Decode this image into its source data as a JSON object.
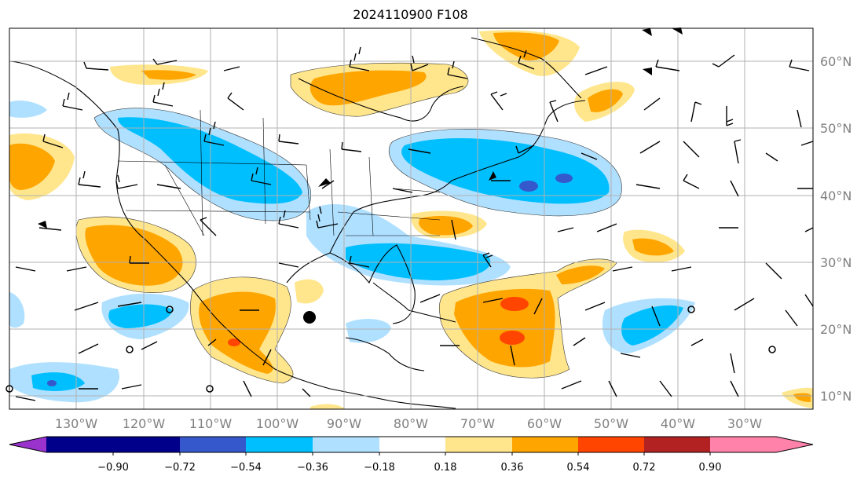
{
  "title": "2024110900 F108",
  "lon_labels": [
    "130°W",
    "120°W",
    "110°W",
    "100°W",
    "90°W",
    "80°W",
    "70°W",
    "60°W",
    "50°W",
    "40°W",
    "30°W"
  ],
  "lat_labels": [
    "60°N",
    "50°N",
    "40°N",
    "30°N",
    "20°N",
    "10°N"
  ],
  "colorbar": {
    "ticks": [
      "−0.90",
      "−0.72",
      "−0.54",
      "−0.36",
      "−0.18",
      "0.18",
      "0.36",
      "0.54",
      "0.72",
      "0.90"
    ],
    "colors": [
      "#9a32cd",
      "#00008b",
      "#3558cc",
      "#00bfff",
      "#b0e0ff",
      "#ffffff",
      "#ffe68c",
      "#ffa500",
      "#ff4500",
      "#b22222",
      "#ff82ab"
    ]
  },
  "map": {
    "storm_marker": "tropical-storm-symbol",
    "fill_colors": {
      "light_blue": "#b0e0ff",
      "blue": "#00bfff",
      "dark_blue": "#3558cc",
      "light_orange": "#ffe68c",
      "orange": "#ffa500",
      "red": "#ff4500"
    }
  }
}
